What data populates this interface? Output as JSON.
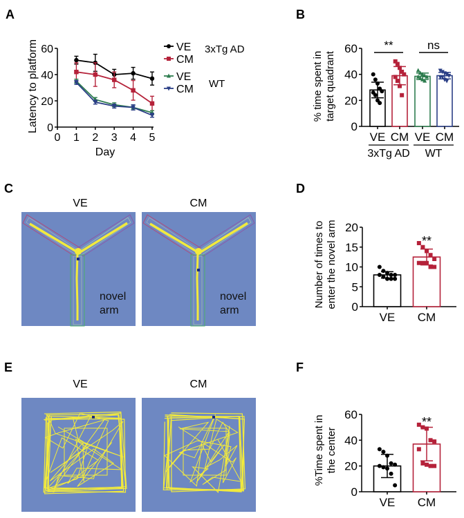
{
  "panels": {
    "A": {
      "label": "A"
    },
    "B": {
      "label": "B"
    },
    "C": {
      "label": "C",
      "titles": [
        "VE",
        "CM"
      ],
      "annotation_line1": "novel",
      "annotation_line2": "arm"
    },
    "D": {
      "label": "D"
    },
    "E": {
      "label": "E",
      "titles": [
        "VE",
        "CM"
      ]
    },
    "F": {
      "label": "F"
    }
  },
  "colors": {
    "black": "#000000",
    "red": "#b5223a",
    "green": "#2e7d4f",
    "blue": "#2b3f86",
    "arena_bg": "#6e88c2",
    "track": "#f2ea3c"
  },
  "chart_data": [
    {
      "id": "A",
      "type": "line",
      "title": "",
      "xlabel": "Day",
      "ylabel": "Latency to platform",
      "x": [
        1,
        2,
        3,
        4,
        5
      ],
      "xticks": [
        "0",
        "1",
        "2",
        "3",
        "4",
        "5"
      ],
      "xlim": [
        0,
        5
      ],
      "yticks": [
        "0",
        "20",
        "40",
        "60"
      ],
      "ylim": [
        0,
        60
      ],
      "legend": {
        "placement": "right",
        "groups": [
          {
            "label": "3xTg AD",
            "entries": [
              "VE",
              "CM"
            ]
          },
          {
            "label": "WT",
            "entries": [
              "VE",
              "CM"
            ]
          }
        ]
      },
      "series": [
        {
          "name": "VE",
          "group": "3xTg AD",
          "color": "#000000",
          "marker": "circle",
          "values": [
            51,
            49,
            40,
            41,
            37
          ],
          "errors": [
            3,
            6.5,
            4,
            4.5,
            5
          ]
        },
        {
          "name": "CM",
          "group": "3xTg AD",
          "color": "#b5223a",
          "marker": "square",
          "values": [
            42,
            40,
            36,
            28,
            18
          ],
          "errors": [
            7,
            9,
            6,
            7.5,
            5.5
          ]
        },
        {
          "name": "VE",
          "group": "WT",
          "color": "#2e7d4f",
          "marker": "triangle-up",
          "values": [
            35,
            21,
            17,
            15,
            11
          ],
          "errors": [
            1.5,
            1.5,
            1.5,
            2,
            1.5
          ]
        },
        {
          "name": "CM",
          "group": "WT",
          "color": "#2b3f86",
          "marker": "triangle-down",
          "values": [
            34,
            19,
            16,
            15,
            9
          ],
          "errors": [
            1.5,
            1.5,
            1.5,
            2,
            1.5
          ]
        }
      ]
    },
    {
      "id": "B",
      "type": "bar",
      "title": "",
      "ylabel_line1": "% time spent in",
      "ylabel_line2": "target quadrant",
      "categories": [
        "VE",
        "CM",
        "VE",
        "CM"
      ],
      "groups": [
        {
          "label": "3xTg AD",
          "members": [
            0,
            1
          ]
        },
        {
          "label": "WT",
          "members": [
            2,
            3
          ]
        }
      ],
      "ylim": [
        0,
        60
      ],
      "yticks": [
        "0",
        "20",
        "40",
        "60"
      ],
      "bars": [
        {
          "name": "VE",
          "color": "#000000",
          "marker": "circle",
          "mean": 28,
          "sd": 6,
          "points": [
            40,
            36,
            33,
            29,
            27,
            26,
            24,
            20,
            18
          ]
        },
        {
          "name": "CM",
          "color": "#b5223a",
          "marker": "square",
          "mean": 39,
          "sd": 7,
          "points": [
            50,
            48,
            45,
            42,
            40,
            38,
            35,
            31,
            24
          ]
        },
        {
          "name": "VE",
          "color": "#2e7d4f",
          "marker": "triangle-up",
          "mean": 38.5,
          "sd": 2.5,
          "points": [
            43,
            41,
            40,
            39,
            38,
            38,
            37,
            36,
            35
          ]
        },
        {
          "name": "CM",
          "color": "#2b3f86",
          "marker": "triangle-down",
          "mean": 39,
          "sd": 2.5,
          "points": [
            43,
            42,
            41,
            40,
            39,
            38,
            38,
            36,
            35
          ]
        }
      ],
      "annotations": [
        {
          "text": "**",
          "between": [
            0,
            1
          ]
        },
        {
          "text": "ns",
          "between": [
            2,
            3
          ]
        }
      ]
    },
    {
      "id": "D",
      "type": "bar",
      "title": "",
      "ylabel_line1": "Number of times to",
      "ylabel_line2": "enter the novel arm",
      "categories": [
        "VE",
        "CM"
      ],
      "ylim": [
        0,
        20
      ],
      "yticks": [
        "0",
        "5",
        "10",
        "15",
        "20"
      ],
      "bars": [
        {
          "name": "VE",
          "color": "#000000",
          "marker": "circle",
          "mean": 8,
          "sd": 0.8,
          "points": [
            10,
            9,
            8.5,
            8,
            8,
            8,
            7.5,
            7,
            7,
            7
          ]
        },
        {
          "name": "CM",
          "color": "#b5223a",
          "marker": "square",
          "mean": 12.5,
          "sd": 2,
          "points": [
            16,
            15,
            14,
            13,
            12,
            11,
            11,
            11,
            10,
            10
          ]
        }
      ],
      "annotations": [
        {
          "text": "**",
          "bar": 1
        }
      ]
    },
    {
      "id": "F",
      "type": "bar",
      "title": "",
      "ylabel_line1": "%Time spent in",
      "ylabel_line2": "the center",
      "categories": [
        "VE",
        "CM"
      ],
      "ylim": [
        0,
        60
      ],
      "yticks": [
        "0",
        "20",
        "40",
        "60"
      ],
      "bars": [
        {
          "name": "VE",
          "color": "#000000",
          "marker": "circle",
          "mean": 20,
          "sd": 9,
          "points": [
            33,
            31,
            28,
            22,
            21,
            20,
            19,
            18,
            14,
            5
          ]
        },
        {
          "name": "CM",
          "color": "#b5223a",
          "marker": "square",
          "mean": 37,
          "sd": 13,
          "points": [
            52,
            50,
            49,
            40,
            39,
            33,
            22,
            21,
            20,
            20
          ]
        }
      ],
      "annotations": [
        {
          "text": "**",
          "bar": 1
        }
      ]
    }
  ]
}
